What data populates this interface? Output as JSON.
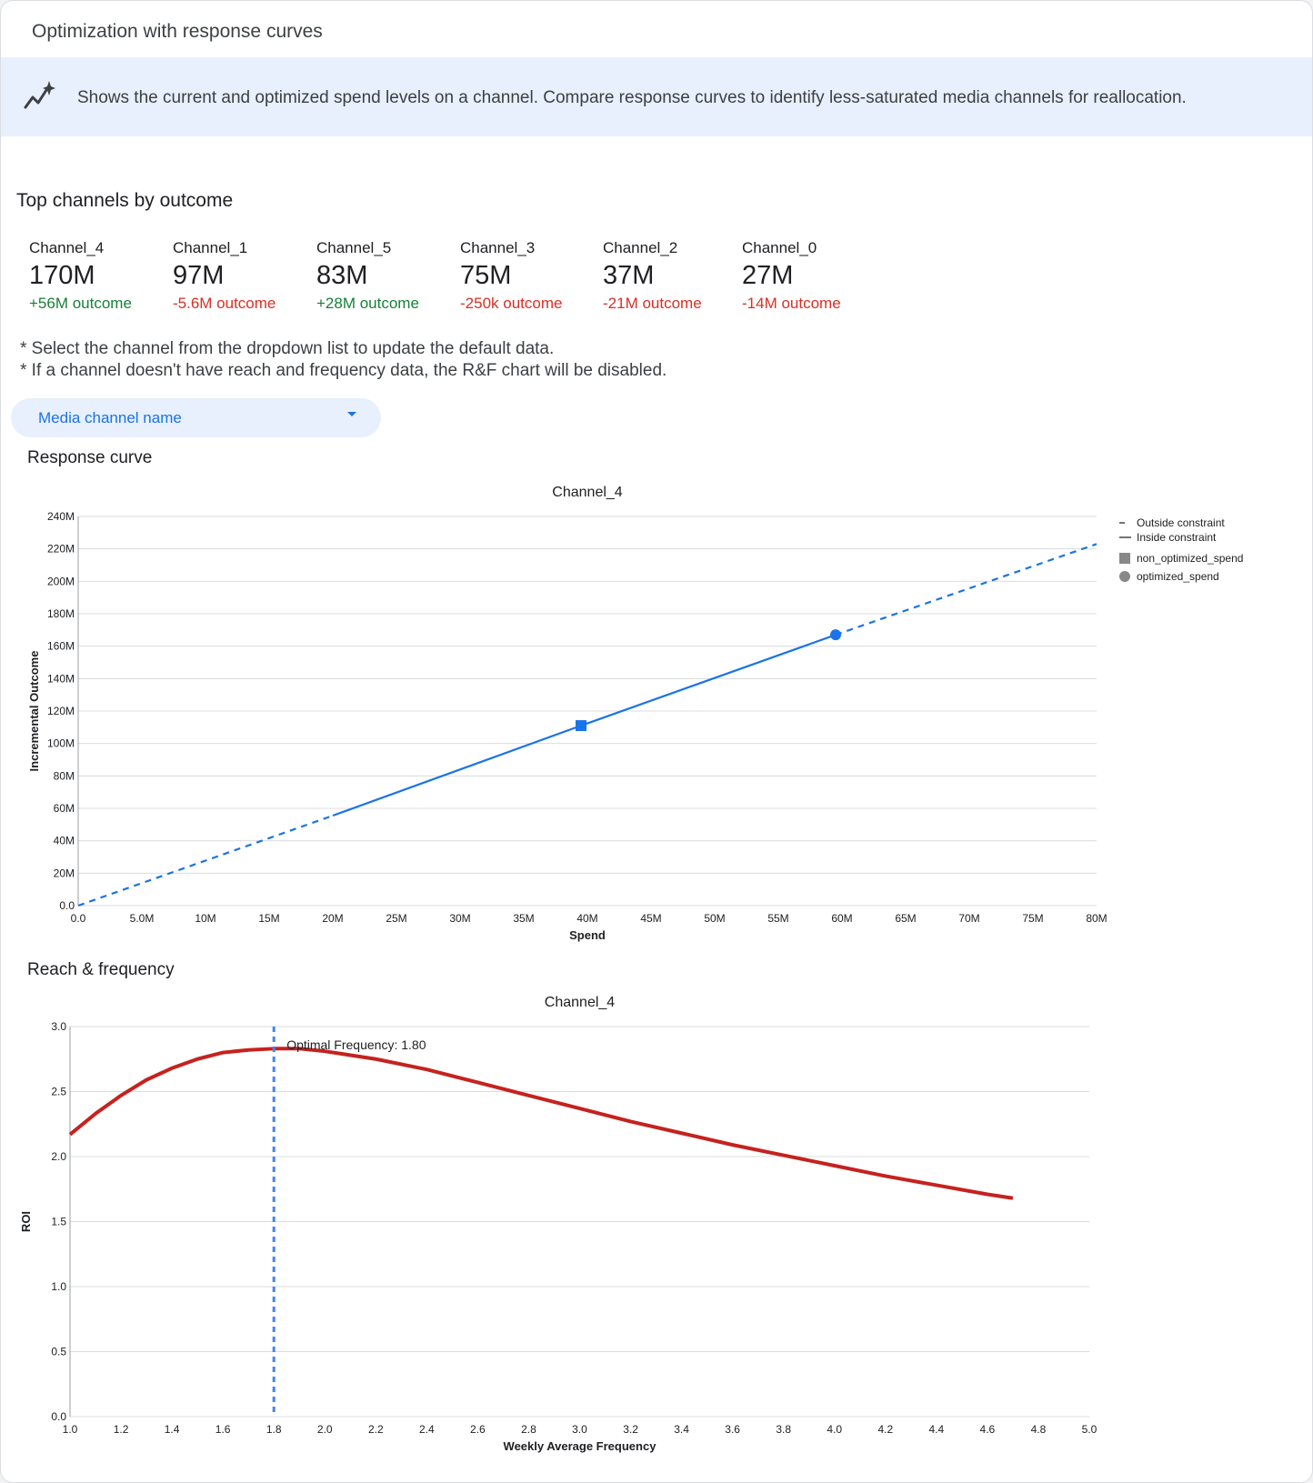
{
  "header": {
    "title": "Optimization with response curves"
  },
  "banner": {
    "icon": "sparkle-trend-icon",
    "text": "Shows the current and optimized spend levels on a channel. Compare response curves to identify less-saturated media channels for reallocation."
  },
  "top_channels": {
    "title": "Top channels by outcome",
    "items": [
      {
        "name": "Channel_4",
        "value": "170M",
        "delta": "+56M outcome",
        "trend": "positive"
      },
      {
        "name": "Channel_1",
        "value": "97M",
        "delta": "-5.6M outcome",
        "trend": "negative"
      },
      {
        "name": "Channel_5",
        "value": "83M",
        "delta": "+28M outcome",
        "trend": "positive"
      },
      {
        "name": "Channel_3",
        "value": "75M",
        "delta": "-250k outcome",
        "trend": "negative"
      },
      {
        "name": "Channel_2",
        "value": "37M",
        "delta": "-21M outcome",
        "trend": "negative"
      },
      {
        "name": "Channel_0",
        "value": "27M",
        "delta": "-14M outcome",
        "trend": "negative"
      }
    ],
    "colors": {
      "positive": "#188038",
      "negative": "#d93025"
    }
  },
  "notes": [
    "* Select the channel from the dropdown list to update the default data.",
    "* If a channel doesn't have reach and frequency data, the R&F chart will be disabled."
  ],
  "dropdown": {
    "label": "Media channel name",
    "icon": "caret-down-icon"
  },
  "sections": {
    "response": "Response curve",
    "rf": "Reach & frequency"
  },
  "chart_data": [
    {
      "type": "line",
      "title": "Channel_4",
      "xlabel": "Spend",
      "ylabel": "Incremental Outcome",
      "xlim": [
        0,
        80000000
      ],
      "ylim": [
        0,
        240000000
      ],
      "xticks": [
        "0.0",
        "5.0M",
        "10M",
        "15M",
        "20M",
        "25M",
        "30M",
        "35M",
        "40M",
        "45M",
        "50M",
        "55M",
        "60M",
        "65M",
        "70M",
        "75M",
        "80M"
      ],
      "yticks": [
        "0.0",
        "20M",
        "40M",
        "60M",
        "80M",
        "100M",
        "120M",
        "140M",
        "160M",
        "180M",
        "200M",
        "220M",
        "240M"
      ],
      "grid": true,
      "color": "#1a73e8",
      "series": [
        {
          "name": "Outside constraint",
          "style": "dashed",
          "x": [
            0,
            20000000
          ],
          "y": [
            0,
            55500000
          ]
        },
        {
          "name": "Inside constraint",
          "style": "solid",
          "x": [
            20000000,
            39500000,
            59500000
          ],
          "y": [
            55500000,
            111000000,
            167000000
          ]
        },
        {
          "name": "Outside constraint",
          "style": "dashed",
          "x": [
            59500000,
            80000000
          ],
          "y": [
            167000000,
            223000000
          ]
        }
      ],
      "points": [
        {
          "name": "non_optimized_spend",
          "shape": "square",
          "x": 39500000,
          "y": 111000000
        },
        {
          "name": "optimized_spend",
          "shape": "circle",
          "x": 59500000,
          "y": 167000000
        }
      ],
      "legend": {
        "position": "right",
        "items": [
          "Outside constraint",
          "Inside constraint",
          "non_optimized_spend",
          "optimized_spend"
        ]
      }
    },
    {
      "type": "line",
      "title": "Channel_4",
      "xlabel": "Weekly Average Frequency",
      "ylabel": "ROI",
      "xlim": [
        1.0,
        5.0
      ],
      "ylim": [
        0,
        3.0
      ],
      "xticks": [
        "1.0",
        "1.2",
        "1.4",
        "1.6",
        "1.8",
        "2.0",
        "2.2",
        "2.4",
        "2.6",
        "2.8",
        "3.0",
        "3.2",
        "3.4",
        "3.6",
        "3.8",
        "4.0",
        "4.2",
        "4.4",
        "4.6",
        "4.8",
        "5.0"
      ],
      "yticks": [
        "0.0",
        "0.5",
        "1.0",
        "1.5",
        "2.0",
        "2.5",
        "3.0"
      ],
      "grid": true,
      "color": "#c5221f",
      "series": [
        {
          "x": [
            1.0,
            1.1,
            1.2,
            1.3,
            1.4,
            1.5,
            1.6,
            1.7,
            1.8,
            1.9,
            2.0,
            2.2,
            2.4,
            2.6,
            2.8,
            3.0,
            3.2,
            3.4,
            3.6,
            3.8,
            4.0,
            4.2,
            4.4,
            4.6,
            4.7
          ],
          "y": [
            2.17,
            2.33,
            2.47,
            2.59,
            2.68,
            2.75,
            2.8,
            2.82,
            2.83,
            2.83,
            2.81,
            2.75,
            2.67,
            2.57,
            2.47,
            2.37,
            2.27,
            2.18,
            2.09,
            2.01,
            1.93,
            1.85,
            1.78,
            1.71,
            1.68
          ]
        }
      ],
      "annotation": {
        "x": 1.8,
        "text": "Optimal Frequency: 1.80",
        "color": "#4285f4"
      }
    }
  ]
}
